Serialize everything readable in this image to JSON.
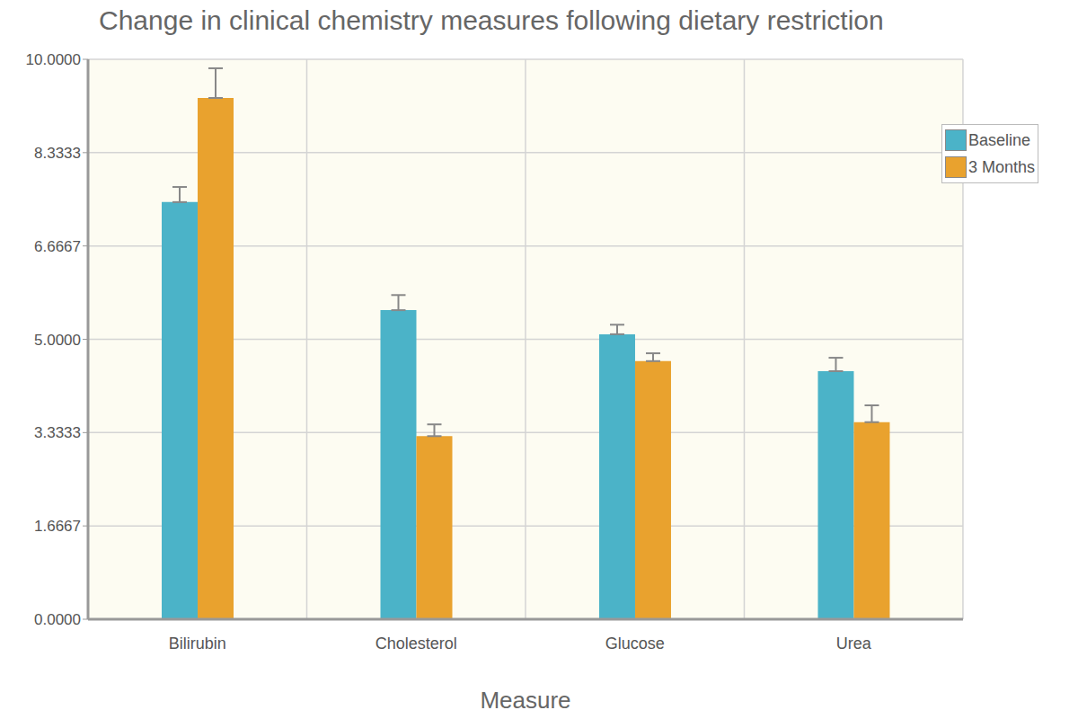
{
  "chart_data": {
    "type": "bar",
    "title": "Change in clinical chemistry measures following dietary restriction",
    "x_label": "Measure",
    "categories": [
      "Bilirubin",
      "Cholesterol",
      "Glucose",
      "Urea"
    ],
    "series": [
      {
        "name": "Baseline",
        "color": "#4bb3c8",
        "values": [
          7.45,
          5.52,
          5.09,
          4.43
        ],
        "errors": [
          0.27,
          0.27,
          0.17,
          0.24
        ]
      },
      {
        "name": "3 Months",
        "color": "#e9a22e",
        "values": [
          9.31,
          3.27,
          4.61,
          3.52
        ],
        "errors": [
          0.53,
          0.21,
          0.14,
          0.3
        ]
      }
    ],
    "ylim": [
      0,
      10
    ],
    "yticks": [
      {
        "value": 0,
        "label": "0.0000"
      },
      {
        "value": 1.6667,
        "label": "1.6667"
      },
      {
        "value": 3.3333,
        "label": "3.3333"
      },
      {
        "value": 5,
        "label": "5.0000"
      },
      {
        "value": 6.6667,
        "label": "6.6667"
      },
      {
        "value": 8.3333,
        "label": "8.3333"
      },
      {
        "value": 10,
        "label": "10.0000"
      }
    ],
    "grid": true,
    "legend": "top-right"
  }
}
